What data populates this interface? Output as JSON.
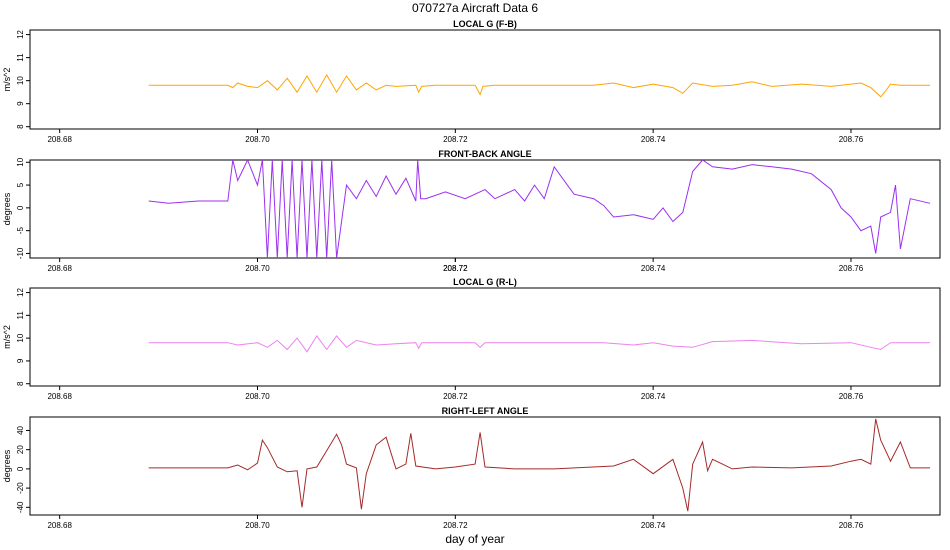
{
  "figure": {
    "title": "070727a   Aircraft Data 6",
    "xlabel": "day of year"
  },
  "chart_data": [
    {
      "type": "line",
      "title": "LOCAL G (F-B)",
      "ylabel": "m/s^2",
      "color": "#FFA500",
      "xlim": [
        208.677,
        208.769
      ],
      "ylim": [
        7.9,
        12.2
      ],
      "xticks": [
        "208.68",
        "208.70",
        "208.72",
        "208.74",
        "208.76"
      ],
      "yticks": [
        "8",
        "9",
        "10",
        "11",
        "12"
      ],
      "series": [
        {
          "x": [
            208.689,
            208.697,
            208.6975,
            208.698,
            208.699,
            208.7,
            208.701,
            208.702,
            208.703,
            208.704,
            208.705,
            208.706,
            208.707,
            208.708,
            208.709,
            208.71,
            208.711,
            208.712,
            208.713,
            208.714,
            208.716,
            208.7163,
            208.7166,
            208.718,
            208.72,
            208.722,
            208.7225,
            208.7228,
            208.724,
            208.728,
            208.73,
            208.734,
            208.736,
            208.738,
            208.74,
            208.742,
            208.743,
            208.744,
            208.746,
            208.748,
            208.75,
            208.752,
            208.755,
            208.758,
            208.76,
            208.761,
            208.762,
            208.763,
            208.7635,
            208.764,
            208.765,
            208.768
          ],
          "y": [
            9.8,
            9.8,
            9.7,
            9.9,
            9.75,
            9.7,
            10.0,
            9.6,
            10.1,
            9.5,
            10.2,
            9.5,
            10.25,
            9.5,
            10.2,
            9.6,
            9.9,
            9.6,
            9.8,
            9.75,
            9.8,
            9.5,
            9.75,
            9.8,
            9.8,
            9.8,
            9.4,
            9.75,
            9.8,
            9.8,
            9.8,
            9.8,
            9.9,
            9.7,
            9.85,
            9.7,
            9.45,
            9.9,
            9.75,
            9.8,
            9.95,
            9.75,
            9.85,
            9.75,
            9.85,
            9.9,
            9.7,
            9.3,
            9.55,
            9.85,
            9.8,
            9.8
          ]
        }
      ]
    },
    {
      "type": "line",
      "title": "FRONT-BACK ANGLE",
      "ylabel": "degrees",
      "color": "#9B30F0",
      "xlim": [
        208.677,
        208.769
      ],
      "ylim": [
        -11,
        10.5
      ],
      "xticks": [
        "208.68",
        "208.70",
        "208.72",
        "208.72",
        "208.74",
        "208.76"
      ],
      "yticks": [
        "-10",
        "-5",
        "0",
        "5",
        "10"
      ],
      "series": [
        {
          "x": [
            208.689,
            208.691,
            208.694,
            208.697,
            208.6975,
            208.698,
            208.699,
            208.7,
            208.7005,
            208.701,
            208.7015,
            208.702,
            208.7025,
            208.703,
            208.7035,
            208.704,
            208.7045,
            208.705,
            208.7055,
            208.706,
            208.7065,
            208.707,
            208.7075,
            208.708,
            208.709,
            208.71,
            208.711,
            208.712,
            208.713,
            208.714,
            208.715,
            208.716,
            208.7162,
            208.7165,
            208.717,
            208.719,
            208.721,
            208.723,
            208.724,
            208.726,
            208.727,
            208.728,
            208.729,
            208.73,
            208.732,
            208.734,
            208.735,
            208.736,
            208.738,
            208.74,
            208.741,
            208.742,
            208.743,
            208.744,
            208.745,
            208.746,
            208.748,
            208.75,
            208.752,
            208.754,
            208.756,
            208.758,
            208.759,
            208.76,
            208.761,
            208.762,
            208.7625,
            208.763,
            208.764,
            208.7645,
            208.765,
            208.766,
            208.768
          ],
          "y": [
            1.5,
            1.0,
            1.5,
            1.5,
            10.5,
            6.0,
            10.5,
            5.0,
            10.5,
            -11,
            10.5,
            -11,
            10.5,
            -11,
            10.5,
            -11,
            10.5,
            -11,
            10.5,
            -11,
            10.5,
            -11,
            10.5,
            -11,
            5.0,
            2.0,
            6.0,
            2.5,
            7.0,
            3.0,
            6.5,
            1.5,
            10.5,
            2.0,
            2.0,
            3.5,
            2.0,
            4.0,
            2.0,
            4.0,
            1.5,
            5.0,
            2.0,
            9.0,
            3.0,
            2.0,
            0.5,
            -2.0,
            -1.5,
            -2.5,
            0.0,
            -3.0,
            -1.0,
            8.0,
            10.5,
            9.0,
            8.5,
            9.5,
            9.0,
            8.5,
            7.5,
            4.0,
            0.0,
            -2.0,
            -5.0,
            -4.0,
            -10.0,
            -2.0,
            -1.0,
            5.0,
            -9.0,
            2.0,
            1.0
          ]
        }
      ]
    },
    {
      "type": "line",
      "title": "LOCAL G (R-L)",
      "ylabel": "m/s^2",
      "color": "#EE82EE",
      "xlim": [
        208.677,
        208.769
      ],
      "ylim": [
        7.9,
        12.2
      ],
      "xticks": [
        "208.68",
        "208.70",
        "208.72",
        "208.74",
        "208.76"
      ],
      "yticks": [
        "8",
        "9",
        "10",
        "11",
        "12"
      ],
      "series": [
        {
          "x": [
            208.689,
            208.697,
            208.698,
            208.7,
            208.701,
            208.702,
            208.703,
            208.704,
            208.705,
            208.706,
            208.707,
            208.708,
            208.709,
            208.71,
            208.712,
            208.714,
            208.716,
            208.7163,
            208.7166,
            208.72,
            208.722,
            208.7225,
            208.723,
            208.73,
            208.735,
            208.738,
            208.74,
            208.742,
            208.744,
            208.746,
            208.75,
            208.755,
            208.76,
            208.762,
            208.763,
            208.764,
            208.765,
            208.768
          ],
          "y": [
            9.8,
            9.8,
            9.7,
            9.8,
            9.6,
            9.9,
            9.5,
            10.0,
            9.4,
            10.1,
            9.5,
            10.1,
            9.6,
            9.9,
            9.7,
            9.75,
            9.8,
            9.55,
            9.8,
            9.8,
            9.8,
            9.6,
            9.8,
            9.8,
            9.8,
            9.7,
            9.8,
            9.65,
            9.6,
            9.85,
            9.9,
            9.75,
            9.8,
            9.6,
            9.5,
            9.8,
            9.8,
            9.8
          ]
        }
      ]
    },
    {
      "type": "line",
      "title": "RIGHT-LEFT ANGLE",
      "ylabel": "degrees",
      "color": "#A52A2A",
      "xlim": [
        208.677,
        208.769
      ],
      "ylim": [
        -48,
        54
      ],
      "xticks": [
        "208.68",
        "208.70",
        "208.72",
        "208.74",
        "208.76"
      ],
      "yticks": [
        "-40",
        "-20",
        "0",
        "20",
        "40"
      ],
      "series": [
        {
          "x": [
            208.689,
            208.695,
            208.697,
            208.698,
            208.699,
            208.7,
            208.7005,
            208.701,
            208.702,
            208.703,
            208.704,
            208.7045,
            208.705,
            208.706,
            208.708,
            208.7085,
            208.709,
            208.71,
            208.7105,
            208.711,
            208.712,
            208.713,
            208.714,
            208.715,
            208.7155,
            208.716,
            208.718,
            208.72,
            208.722,
            208.7225,
            208.723,
            208.726,
            208.73,
            208.736,
            208.738,
            208.74,
            208.742,
            208.743,
            208.7435,
            208.744,
            208.745,
            208.7455,
            208.746,
            208.747,
            208.748,
            208.75,
            208.754,
            208.758,
            208.76,
            208.761,
            208.762,
            208.7625,
            208.763,
            208.764,
            208.765,
            208.766,
            208.768
          ],
          "y": [
            1,
            1,
            1,
            4,
            -1,
            6,
            30,
            22,
            2,
            -3,
            -2,
            -40,
            0,
            2,
            36,
            25,
            5,
            1,
            -42,
            -5,
            25,
            33,
            0,
            5,
            37,
            3,
            0,
            2,
            5,
            38,
            2,
            0,
            0,
            3,
            10,
            -5,
            10,
            -20,
            -44,
            5,
            28,
            -2,
            10,
            5,
            0,
            2,
            1,
            3,
            8,
            10,
            5,
            52,
            30,
            8,
            28,
            1,
            1
          ]
        }
      ]
    }
  ]
}
